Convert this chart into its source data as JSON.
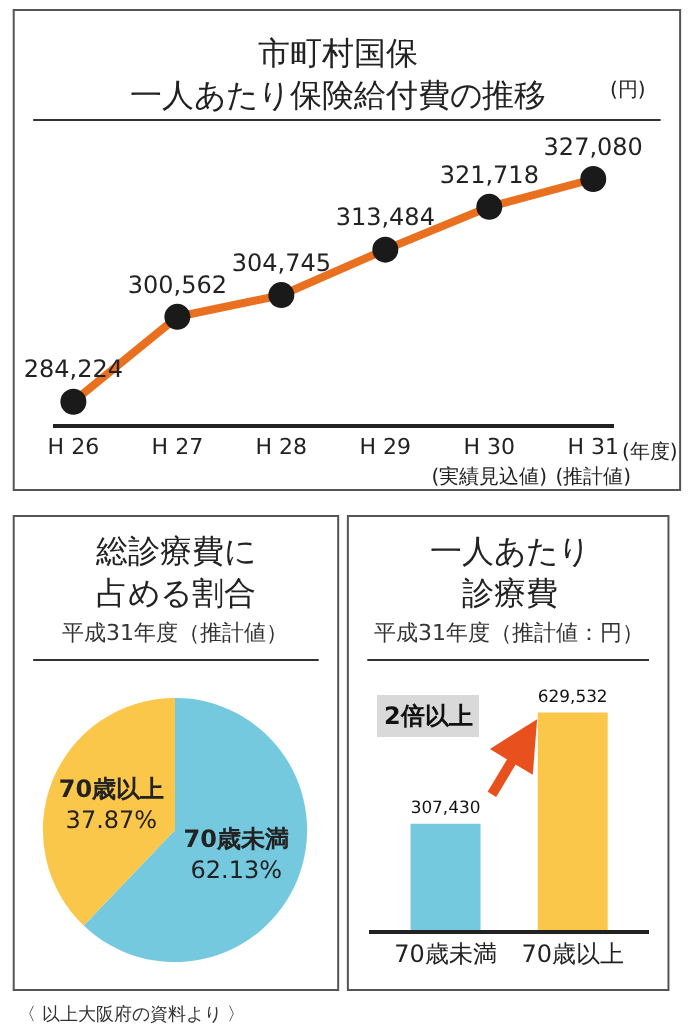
{
  "chart_data": [
    {
      "type": "line",
      "title": "市町村国保一人あたり保険給付費の推移",
      "ylabel": "(円)",
      "xlabel": "(年度)",
      "categories": [
        "H 26",
        "H 27",
        "H 28",
        "H 29",
        "H 30\n(実績見込値)",
        "H 31\n(推計値)"
      ],
      "values": [
        284224,
        300562,
        304745,
        313484,
        321718,
        327080
      ],
      "value_labels": [
        "284,224",
        "300,562",
        "304,745",
        "313,484",
        "321,718",
        "327,080"
      ],
      "color": "#e8701e",
      "marker": "circle",
      "line_style": "solid",
      "tick_labels": "x"
    },
    {
      "type": "pie",
      "title": "総診療費に占める割合",
      "subtitle": "平成31年度（推計値）",
      "categories": [
        "70歳未満",
        "70歳以上"
      ],
      "values": [
        62.13,
        37.87
      ],
      "value_labels": [
        "62.13%",
        "37.87%"
      ],
      "colors": [
        "#74c9de",
        "#fbc74a"
      ],
      "annotations": [
        "〈 以上大阪府の資料より 〉"
      ]
    },
    {
      "type": "bar",
      "title": "一人あたり診療費",
      "subtitle": "平成31年度（推計値：円）",
      "categories": [
        "70歳未満",
        "70歳以上"
      ],
      "values": [
        307430,
        629532
      ],
      "value_labels": [
        "307,430",
        "629,532"
      ],
      "colors": [
        "#74c9de",
        "#fbc74a"
      ],
      "tick_labels": "x",
      "annotations": [
        "2倍以上"
      ]
    }
  ]
}
